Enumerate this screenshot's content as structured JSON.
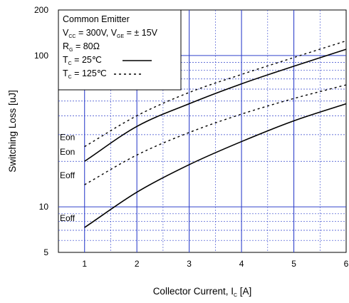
{
  "chart_data": {
    "type": "line",
    "xlabel_main": "Collector Current, I",
    "xlabel_sub": "C",
    "xlabel_unit": " [A]",
    "ylabel": "Switching Loss [uJ]",
    "x_scale": "linear",
    "y_scale": "log",
    "xlim": [
      0.5,
      6
    ],
    "ylim": [
      5,
      200
    ],
    "x_ticks": [
      "1",
      "2",
      "3",
      "4",
      "5",
      "6"
    ],
    "y_ticks": [
      "5",
      "10",
      "100",
      "200"
    ],
    "grid": true,
    "legend": {
      "placement": "top-left",
      "title": "Common Emitter",
      "vcc_main": "V",
      "vcc_sub": "CC",
      "vcc_eq": " = 300V, V",
      "vge_sub": "GE",
      "vge_eq": " = ± 15V",
      "rg_main": "R",
      "rg_sub": "G",
      "rg_eq": " = 80Ω",
      "tc_main": "T",
      "tc_sub": "C",
      "tc25_eq": " = 25℃",
      "tc125_eq": " = 125℃"
    },
    "series": [
      {
        "name": "Eon",
        "condition": "TC = 125℃",
        "style": "dashed",
        "x": [
          1,
          2,
          3,
          4,
          5,
          6
        ],
        "y": [
          25,
          40,
          57,
          75,
          97,
          125
        ]
      },
      {
        "name": "Eon",
        "condition": "TC = 25℃",
        "style": "solid",
        "x": [
          1,
          2,
          3,
          4,
          5,
          6
        ],
        "y": [
          20,
          34,
          48,
          65,
          85,
          110
        ]
      },
      {
        "name": "Eoff",
        "condition": "TC = 125℃",
        "style": "dashed",
        "x": [
          1,
          2,
          3,
          4,
          5,
          6
        ],
        "y": [
          14,
          22,
          31,
          41,
          52,
          64
        ]
      },
      {
        "name": "Eoff",
        "condition": "TC = 25℃",
        "style": "solid",
        "x": [
          1,
          2,
          3,
          4,
          5,
          6
        ],
        "y": [
          7.3,
          12.5,
          19,
          27,
          37,
          48
        ]
      }
    ]
  }
}
